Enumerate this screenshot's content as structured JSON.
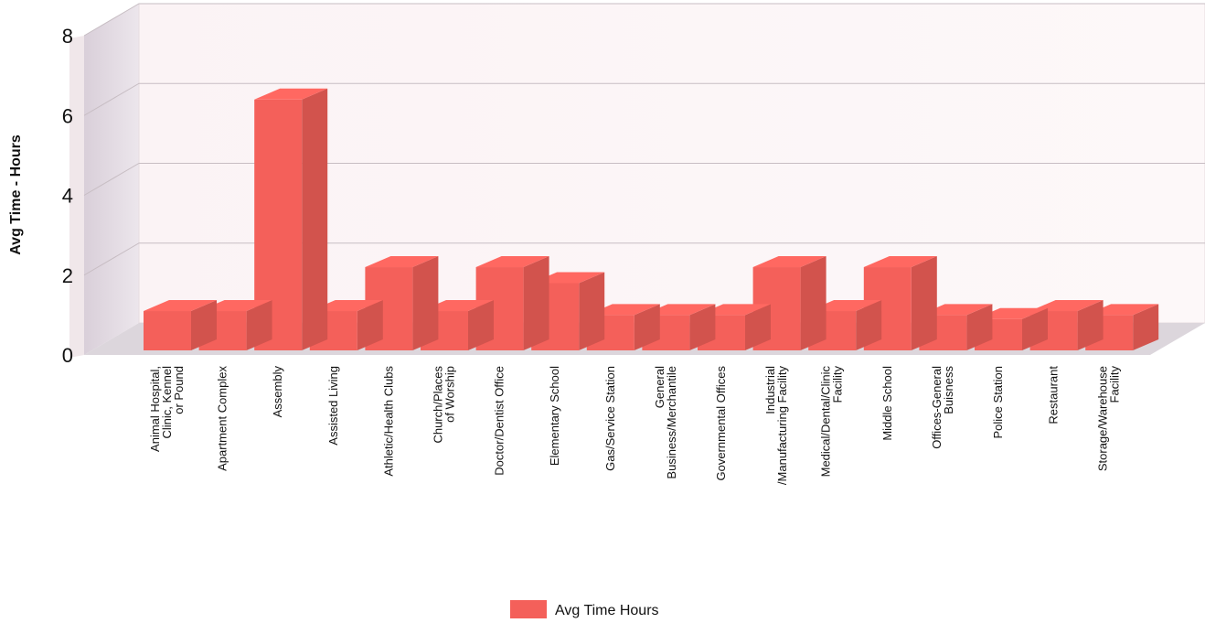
{
  "chart_data": {
    "type": "bar",
    "title": "",
    "xlabel": "",
    "ylabel": "Avg Time - Hours",
    "ylim": [
      0,
      8
    ],
    "yticks": [
      0,
      2,
      4,
      6,
      8
    ],
    "grid": true,
    "legend_position": "bottom-center",
    "categories": [
      [
        "Animal Hospital,",
        "Clinic, Kennel",
        "or Pound"
      ],
      [
        "Apartment Complex"
      ],
      [
        "Assembly"
      ],
      [
        "Assisted Living"
      ],
      [
        "Athletic/Health Clubs"
      ],
      [
        "Church/Places",
        "of Worship"
      ],
      [
        "Doctor/Dentist Office"
      ],
      [
        "Elementary School"
      ],
      [
        "Gas/Service Station"
      ],
      [
        "General",
        "Business/Merchantile"
      ],
      [
        "Governmental Offices"
      ],
      [
        "Industrial",
        "/Manufacturing Facility"
      ],
      [
        "Medical/Dental/Clinic",
        "Facility"
      ],
      [
        "Middle School"
      ],
      [
        "Offices-General",
        "Buisness"
      ],
      [
        "Police Station"
      ],
      [
        "Restaurant"
      ],
      [
        "Storage/Warehouse",
        "Facility"
      ]
    ],
    "series": [
      {
        "name": "Avg Time Hours",
        "color": "#f4605a",
        "values": [
          1.1,
          1.1,
          6.4,
          1.1,
          2.2,
          1.1,
          2.2,
          1.8,
          1.0,
          1.0,
          1.0,
          2.2,
          1.1,
          2.2,
          1.0,
          0.9,
          1.1,
          1.0
        ]
      }
    ]
  }
}
